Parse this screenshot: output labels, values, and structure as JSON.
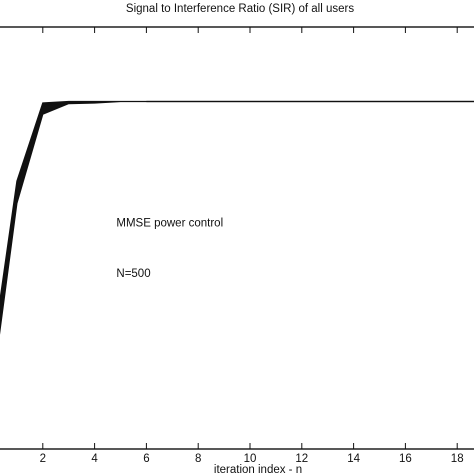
{
  "chart_data": {
    "type": "line",
    "title": "Signal to Interference Ratio (SIR) of all users",
    "xlabel": "iteration index - n",
    "ylabel": "",
    "xlim": [
      0,
      20
    ],
    "x_ticks": [
      2,
      4,
      6,
      8,
      10,
      12,
      14,
      16,
      18
    ],
    "grid": false,
    "annotations": [
      {
        "text": "MMSE power control",
        "x": 6.0,
        "y": 0.582
      },
      {
        "text": "N=500",
        "x": 6.0,
        "y": 0.41
      }
    ],
    "band": {
      "description_of_series": "many overlapping per-user SIR curves",
      "x": [
        0,
        1,
        2,
        3,
        4,
        5,
        6,
        8,
        10,
        12,
        14,
        16,
        18,
        20
      ],
      "upper": [
        0.12,
        0.735,
        1.0,
        1.005,
        1.005,
        1.005,
        1.005,
        1.005,
        1.005,
        1.005,
        1.005,
        1.005,
        1.005,
        1.005
      ],
      "lower": [
        0.0,
        0.66,
        0.962,
        0.998,
        1.0,
        1.005,
        1.005,
        1.005,
        1.005,
        1.005,
        1.005,
        1.005,
        1.005,
        1.005
      ]
    },
    "edge_curve": {
      "x": [
        0,
        1,
        2,
        3,
        4,
        5,
        6,
        8,
        10,
        12,
        14,
        16,
        18,
        20
      ],
      "y": [
        0.08,
        0.72,
        0.99,
        1.003,
        1.005,
        1.005,
        1.005,
        1.005,
        1.005,
        1.005,
        1.005,
        1.005,
        1.005,
        1.005
      ]
    }
  }
}
